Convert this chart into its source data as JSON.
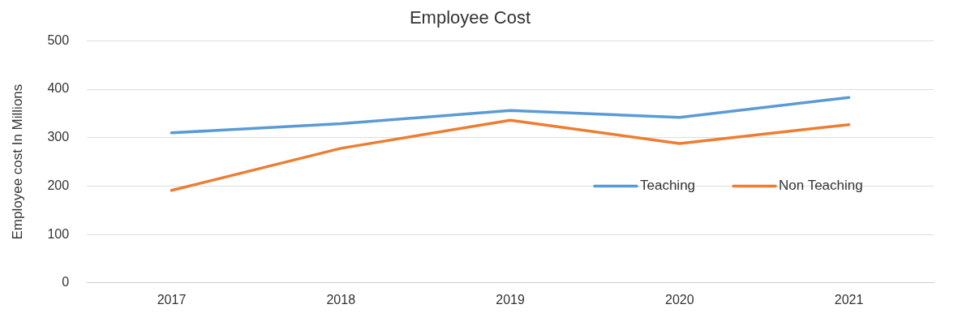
{
  "chart_data": {
    "type": "line",
    "title": "Employee Cost",
    "ylabel": "Employee cost In Millions",
    "categories": [
      "2017",
      "2018",
      "2019",
      "2020",
      "2021"
    ],
    "series": [
      {
        "name": "Teaching",
        "color": "#5b9bd5",
        "values": [
          310,
          329,
          356,
          342,
          383
        ]
      },
      {
        "name": "Non Teaching",
        "color": "#ed7d31",
        "values": [
          191,
          278,
          336,
          288,
          327
        ]
      }
    ],
    "ylim": [
      0,
      500
    ],
    "yticks": [
      0,
      100,
      200,
      300,
      400,
      500
    ],
    "grid": "y",
    "legend": "right",
    "marker": "none",
    "line_style": "solid"
  }
}
